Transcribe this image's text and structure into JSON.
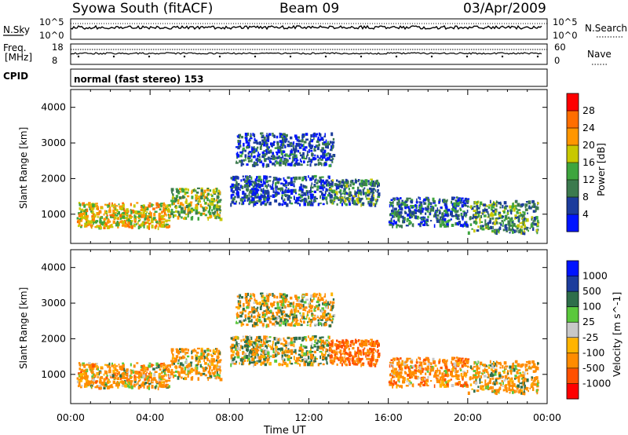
{
  "header": {
    "station": "Syowa South (fitACF)",
    "beam": "Beam 09",
    "date": "03/Apr/2009"
  },
  "strip_panels": {
    "nsky": {
      "label": "N.Sky",
      "top_tick": "10^5",
      "bottom_tick": "10^0",
      "right_top_tick": "10^5",
      "right_bottom_tick": "10^0",
      "right_label": "N.Search"
    },
    "freq": {
      "label_line1": "Freq.",
      "label_line2": "[MHz]",
      "top_tick": "18",
      "bottom_tick": "8",
      "right_top_tick": "60",
      "right_bottom_tick": "0",
      "right_label": "Nave"
    },
    "cpid": {
      "label": "CPID",
      "text": "normal (fast stereo) 153"
    }
  },
  "x_axis": {
    "label": "Time UT",
    "ticks": [
      "00:00",
      "04:00",
      "08:00",
      "12:00",
      "16:00",
      "20:00",
      "00:00"
    ]
  },
  "power_colorbar": {
    "label": "Power [dB]",
    "ticks": [
      "28",
      "24",
      "20",
      "16",
      "12",
      "8",
      "4"
    ],
    "colors": [
      "#0014ff",
      "#1c3c9c",
      "#3c7a4e",
      "#3ea53e",
      "#c8c800",
      "#ff9600",
      "#ff6e00",
      "#ff0000"
    ]
  },
  "velocity_colorbar": {
    "label": "Velocity [m s^-1]",
    "ticks": [
      "1000",
      "500",
      "100",
      "25",
      "-25",
      "-100",
      "-500",
      "-1000"
    ],
    "colors": [
      "#0014ff",
      "#1c3c9c",
      "#2e6e4a",
      "#5ac83c",
      "#c8c8c8",
      "#ffb400",
      "#ff8c00",
      "#ff5000",
      "#ff0000"
    ]
  },
  "chart_data": [
    {
      "type": "heatmap",
      "title": "Power",
      "xlabel": "Time UT",
      "ylabel": "Slant Range [km]",
      "xlim": [
        "00:00",
        "24:00"
      ],
      "ylim": [
        180,
        4500
      ],
      "y_ticks": [
        1000,
        2000,
        3000,
        4000
      ],
      "colorbar_label": "Power [dB]",
      "scatter_regions": [
        {
          "t": [
            0.3,
            5.0
          ],
          "r": [
            650,
            1350
          ],
          "value": 20,
          "note": ""
        },
        {
          "t": [
            5.0,
            7.5
          ],
          "r": [
            900,
            1750
          ],
          "value": 16,
          "note": ""
        },
        {
          "t": [
            8.0,
            13.0
          ],
          "r": [
            1300,
            2100
          ],
          "value": 6,
          "note": ""
        },
        {
          "t": [
            8.3,
            13.2
          ],
          "r": [
            2400,
            3300
          ],
          "value": 6,
          "note": ""
        },
        {
          "t": [
            13.0,
            15.5
          ],
          "r": [
            1300,
            2000
          ],
          "value": 10,
          "note": ""
        },
        {
          "t": [
            16.0,
            20.0
          ],
          "r": [
            700,
            1500
          ],
          "value": 8,
          "note": ""
        },
        {
          "t": [
            20.0,
            23.5
          ],
          "r": [
            500,
            1400
          ],
          "value": 12,
          "note": ""
        }
      ]
    },
    {
      "type": "heatmap",
      "title": "Velocity",
      "xlabel": "Time UT",
      "ylabel": "Slant Range [km]",
      "xlim": [
        "00:00",
        "24:00"
      ],
      "ylim": [
        180,
        4500
      ],
      "y_ticks": [
        1000,
        2000,
        3000,
        4000
      ],
      "colorbar_label": "Velocity [m s^-1]",
      "scatter_regions": [
        {
          "t": [
            0.3,
            5.0
          ],
          "r": [
            650,
            1350
          ],
          "value": -200
        },
        {
          "t": [
            5.0,
            7.5
          ],
          "r": [
            900,
            1750
          ],
          "value": -150
        },
        {
          "t": [
            8.0,
            13.0
          ],
          "r": [
            1300,
            2100
          ],
          "value": 0
        },
        {
          "t": [
            8.3,
            13.2
          ],
          "r": [
            2400,
            3300
          ],
          "value": -80
        },
        {
          "t": [
            13.0,
            15.5
          ],
          "r": [
            1300,
            2000
          ],
          "value": -500
        },
        {
          "t": [
            16.0,
            20.0
          ],
          "r": [
            700,
            1500
          ],
          "value": -300
        },
        {
          "t": [
            20.0,
            23.5
          ],
          "r": [
            500,
            1400
          ],
          "value": -150
        }
      ]
    }
  ]
}
